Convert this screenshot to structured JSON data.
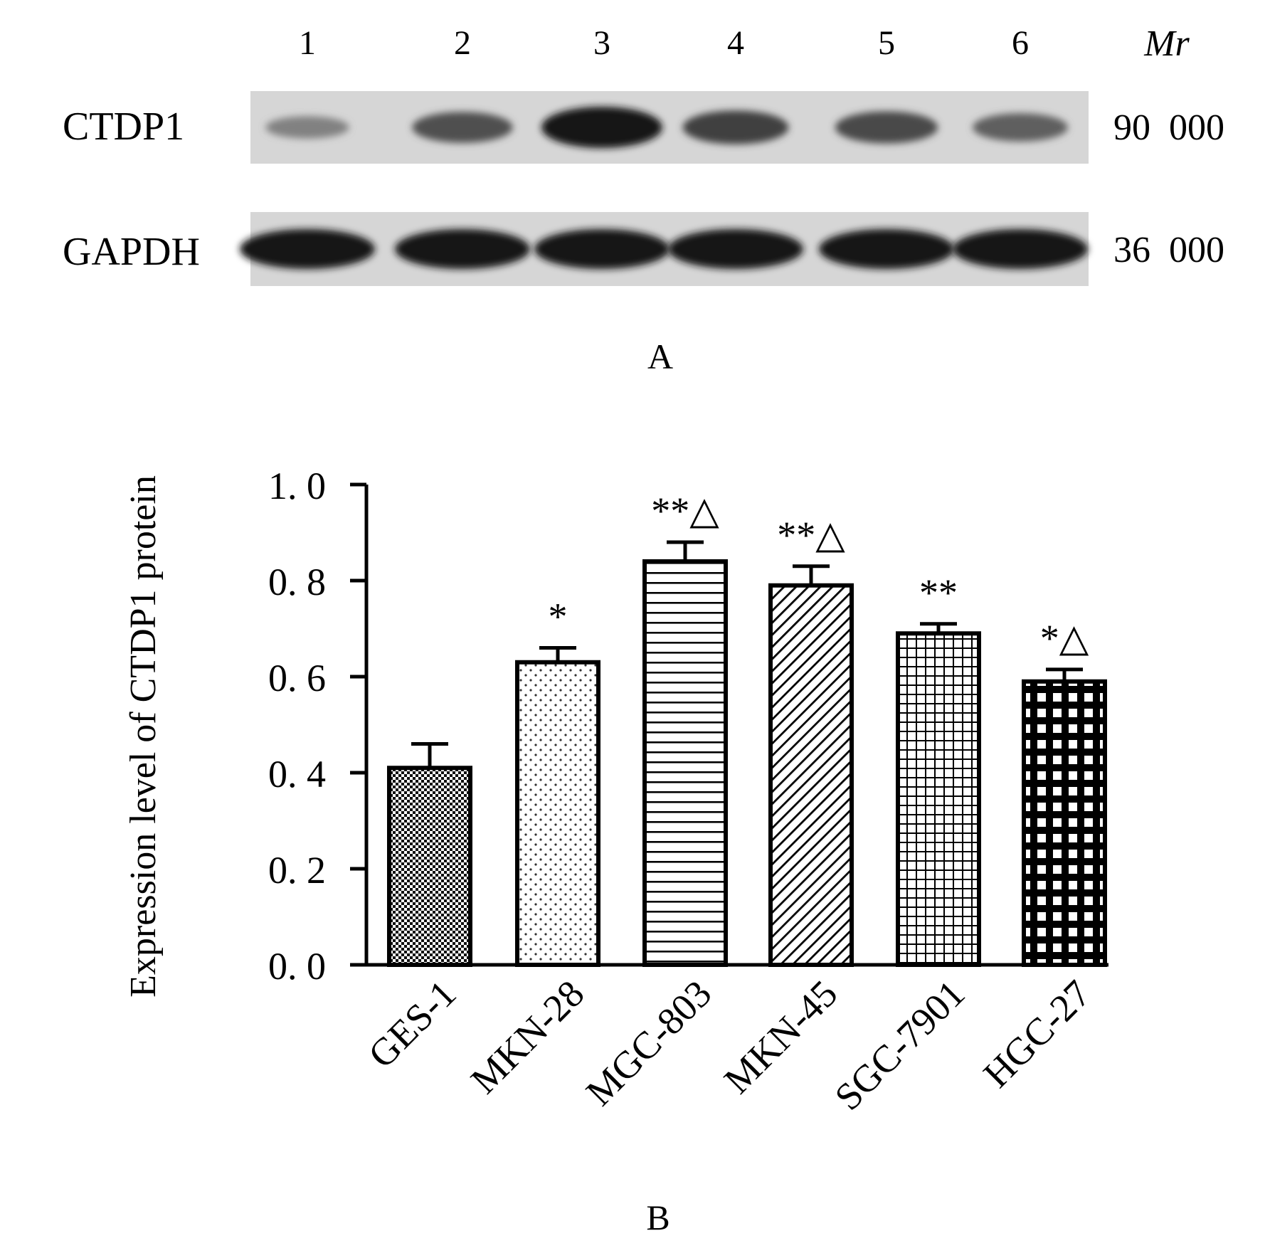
{
  "panel_a": {
    "lane_numbers": [
      "1",
      "2",
      "3",
      "4",
      "5",
      "6"
    ],
    "mr_label": "Mr",
    "rows": [
      {
        "name": "CTDP1",
        "mr": "90  000",
        "band_intensity": [
          0.3,
          0.62,
          1.0,
          0.72,
          0.66,
          0.52
        ]
      },
      {
        "name": "GAPDH",
        "mr": "36  000",
        "band_intensity": [
          1.0,
          1.0,
          1.0,
          1.0,
          1.0,
          1.0
        ]
      }
    ],
    "panel_label": "A"
  },
  "panel_b_label": "B",
  "chart_data": {
    "type": "bar",
    "title": "",
    "xlabel": "",
    "ylabel": "Expression level of CTDP1 protein",
    "ylim": [
      0,
      1.0
    ],
    "yticks": [
      "0. 0",
      "0. 2",
      "0. 4",
      "0. 6",
      "0. 8",
      "1. 0"
    ],
    "categories": [
      "GES-1",
      "MKN-28",
      "MGC-803",
      "MKN-45",
      "SGC-7901",
      "HGC-27"
    ],
    "values": [
      0.41,
      0.63,
      0.84,
      0.79,
      0.69,
      0.59
    ],
    "errors": [
      0.05,
      0.03,
      0.04,
      0.04,
      0.02,
      0.025
    ],
    "annotations": [
      "",
      "*",
      "**△",
      "**△",
      "**",
      "*△"
    ],
    "patterns": [
      "checker",
      "dots",
      "horizontal-lines",
      "diagonal-lines",
      "grid",
      "bold-grid"
    ],
    "grid": false,
    "legend": "none"
  }
}
